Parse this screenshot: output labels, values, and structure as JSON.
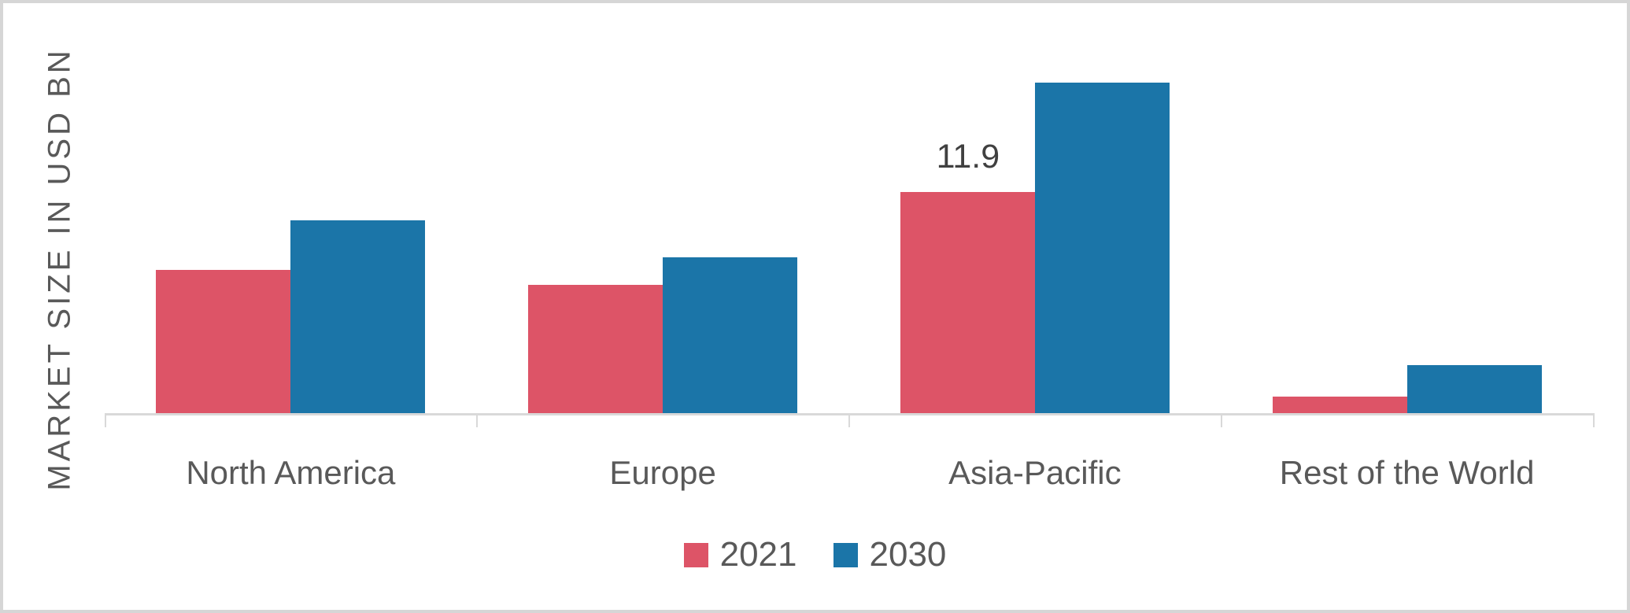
{
  "chart_data": {
    "type": "bar",
    "title": "",
    "xlabel": "",
    "ylabel": "MARKET SIZE IN USD BN",
    "categories": [
      "North America",
      "Europe",
      "Asia-Pacific",
      "Rest of the World"
    ],
    "series": [
      {
        "name": "2021",
        "color": "#dd5467",
        "values": [
          7.7,
          6.9,
          11.9,
          0.9
        ]
      },
      {
        "name": "2030",
        "color": "#1b75a8",
        "values": [
          10.4,
          8.4,
          17.8,
          2.6
        ]
      }
    ],
    "ylim": [
      0,
      20
    ],
    "grid": false,
    "legend_position": "bottom",
    "data_labels": [
      {
        "series": "2021",
        "category": "Asia-Pacific",
        "text": "11.9",
        "value": 11.9
      }
    ]
  },
  "axis": {
    "y_label": "MARKET SIZE IN USD BN",
    "line_color": "#d9d9d9"
  },
  "legend": {
    "items": [
      {
        "label": "2021",
        "color": "#dd5467"
      },
      {
        "label": "2030",
        "color": "#1b75a8"
      }
    ]
  },
  "colors": {
    "series_2021": "#dd5467",
    "series_2030": "#1b75a8",
    "text_gray": "#595959",
    "data_label": "#404040",
    "axis_line": "#d9d9d9",
    "frame_border": "#d6d6d6",
    "background": "#ffffff"
  }
}
